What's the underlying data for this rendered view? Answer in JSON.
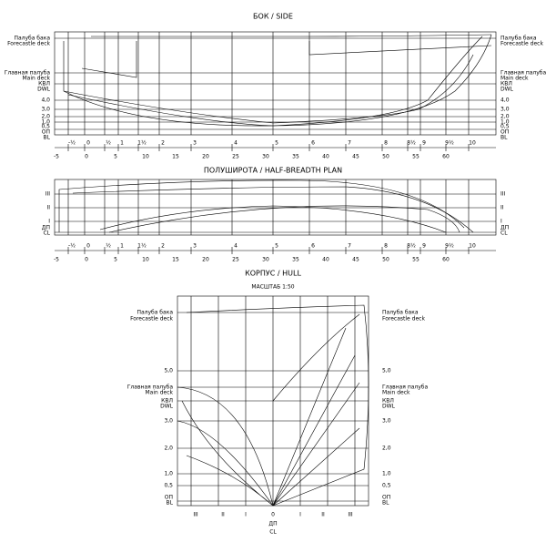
{
  "side": {
    "title": "БОК / SIDE",
    "labels": [
      "Палуба бака",
      "Forecastle deck",
      "Главная палуба",
      "Main deck",
      "КВЛ",
      "DWL",
      "4,0",
      "3,0",
      "2,0",
      "1,0",
      "0,5",
      "ОП",
      "BL"
    ],
    "stations": [
      "-½",
      "0",
      "½",
      "1",
      "1½",
      "2",
      "3",
      "4",
      "5",
      "6",
      "7",
      "8",
      "8½",
      "9",
      "9½",
      "10"
    ],
    "scale": [
      "-5",
      "0",
      "5",
      "10",
      "15",
      "20",
      "25",
      "30",
      "35",
      "40",
      "45",
      "50",
      "55",
      "60"
    ]
  },
  "half_breadth": {
    "title": "ПОЛУШИРОТА / HALF-BREADTH PLAN",
    "labels": [
      "III",
      "II",
      "I",
      "ДП",
      "CL"
    ],
    "stations": [
      "-½",
      "0",
      "½",
      "1",
      "1½",
      "2",
      "3",
      "4",
      "5",
      "6",
      "7",
      "8",
      "8½",
      "9",
      "9½",
      "10"
    ],
    "scale": [
      "-5",
      "0",
      "5",
      "10",
      "15",
      "20",
      "25",
      "30",
      "35",
      "40",
      "45",
      "50",
      "55",
      "60"
    ]
  },
  "hull": {
    "title": "КОРПУС / HULL",
    "scale_note": "МАСШТАБ 1:50",
    "labels": [
      "Палуба бака",
      "Forecastle deck",
      "5,0",
      "Главная палуба",
      "Main deck",
      "КВЛ",
      "DWL",
      "3,0",
      "2,0",
      "1,0",
      "0,5",
      "ОП",
      "BL"
    ],
    "buttocks": [
      "III",
      "II",
      "I",
      "0",
      "I",
      "II",
      "III"
    ],
    "center": [
      "ДП",
      "CL"
    ]
  }
}
